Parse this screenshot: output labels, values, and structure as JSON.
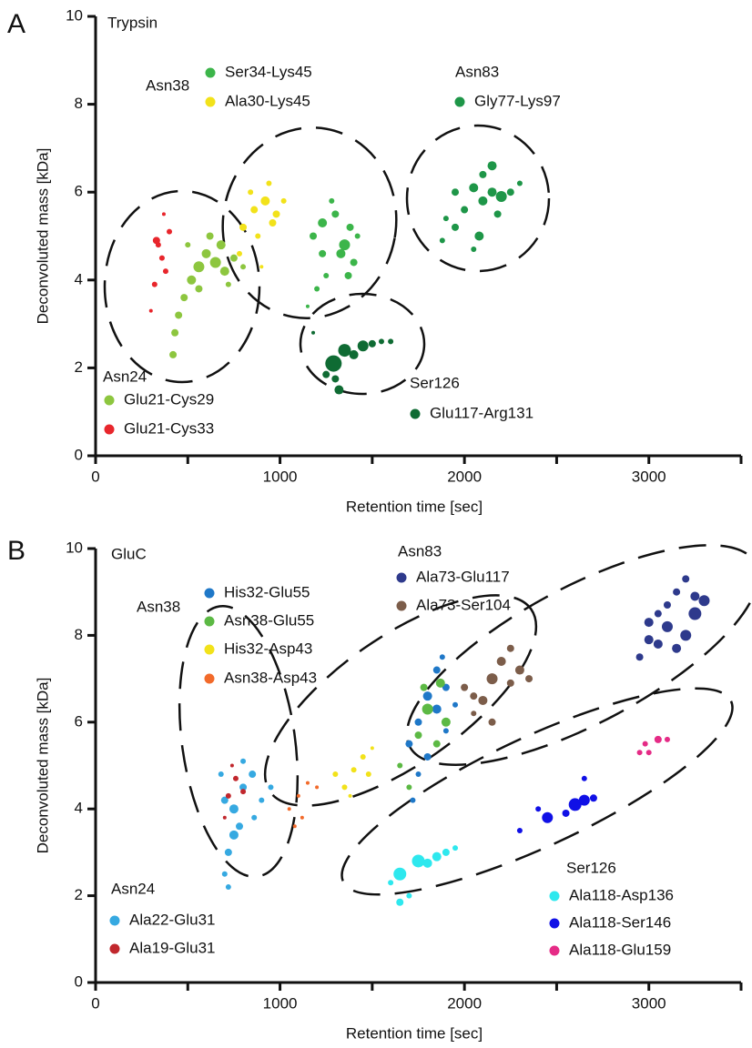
{
  "chart_data": [
    {
      "type": "scatter",
      "panel_label": "A",
      "title": "Trypsin",
      "xlabel": "Retention time [sec]",
      "ylabel": "Deconvoluted mass [kDa]",
      "xlim": [
        0,
        3500
      ],
      "ylim": [
        0,
        10
      ],
      "xticks": [
        0,
        1000,
        2000,
        3000
      ],
      "xminorticks": [
        500,
        1500,
        2500,
        3500
      ],
      "yticks": [
        0,
        2,
        4,
        6,
        8,
        10
      ],
      "annotations": [
        "Asn38",
        "Asn83",
        "Ser126",
        "Asn24"
      ],
      "series": [
        {
          "name": "Ser34-Lys45",
          "color": "#3cb54a",
          "x": [
            1180,
            1230,
            1300,
            1350,
            1330,
            1380,
            1400,
            1250,
            1200,
            1150,
            1420,
            1280,
            1230,
            1370
          ],
          "y": [
            5.0,
            5.3,
            5.5,
            4.8,
            4.6,
            5.2,
            4.4,
            4.1,
            3.8,
            3.4,
            5.0,
            5.8,
            4.6,
            4.1
          ],
          "sizes": [
            4,
            5,
            4,
            6,
            5,
            4,
            4,
            3,
            3,
            2,
            3,
            3,
            4,
            4
          ]
        },
        {
          "name": "Ala30-Lys45",
          "color": "#f2e21a",
          "x": [
            800,
            860,
            920,
            980,
            1020,
            880,
            940,
            780,
            900,
            840,
            960
          ],
          "y": [
            5.2,
            5.6,
            5.8,
            5.5,
            5.8,
            5.0,
            6.2,
            4.6,
            4.3,
            6.0,
            5.3
          ],
          "sizes": [
            4,
            4,
            5,
            4,
            3,
            3,
            3,
            3,
            2,
            3,
            4
          ]
        },
        {
          "name": "Gly77-Lys97",
          "color": "#1e9648",
          "x": [
            1950,
            2050,
            2150,
            2200,
            2100,
            2000,
            1950,
            2080,
            2150,
            2250,
            2180,
            1900,
            2050,
            2100,
            2300,
            1880
          ],
          "y": [
            6.0,
            6.1,
            6.0,
            5.9,
            5.8,
            5.6,
            5.2,
            5.0,
            6.6,
            6.0,
            5.5,
            5.4,
            4.7,
            6.4,
            6.2,
            4.9
          ],
          "sizes": [
            4,
            5,
            5,
            6,
            5,
            4,
            4,
            5,
            5,
            4,
            4,
            3,
            3,
            4,
            3,
            3
          ]
        },
        {
          "name": "Glu117-Arg131",
          "color": "#0f6b33",
          "x": [
            1290,
            1350,
            1450,
            1400,
            1500,
            1550,
            1320,
            1250,
            1300,
            1600,
            1180
          ],
          "y": [
            2.1,
            2.4,
            2.5,
            2.3,
            2.55,
            2.6,
            1.5,
            1.85,
            1.75,
            2.6,
            2.8
          ],
          "sizes": [
            9,
            7,
            6,
            5,
            4,
            3,
            5,
            4,
            4,
            3,
            2
          ]
        },
        {
          "name": "Glu21-Cys29",
          "color": "#8dc63f",
          "x": [
            560,
            600,
            650,
            700,
            520,
            480,
            450,
            430,
            420,
            680,
            750,
            620,
            560,
            720,
            500,
            800
          ],
          "y": [
            4.3,
            4.6,
            4.4,
            4.2,
            4.0,
            3.6,
            3.2,
            2.8,
            2.3,
            4.8,
            4.5,
            5.0,
            3.8,
            3.9,
            4.8,
            4.3
          ],
          "sizes": [
            6,
            5,
            6,
            5,
            5,
            4,
            4,
            4,
            4,
            5,
            4,
            4,
            4,
            3,
            3,
            3
          ]
        },
        {
          "name": "Glu21-Cys33",
          "color": "#e8262c",
          "x": [
            330,
            360,
            380,
            320,
            300,
            400,
            370,
            340
          ],
          "y": [
            4.9,
            4.5,
            4.2,
            3.9,
            3.3,
            5.1,
            5.5,
            4.8
          ],
          "sizes": [
            4,
            3,
            3,
            3,
            2,
            3,
            2,
            3
          ]
        }
      ]
    },
    {
      "type": "scatter",
      "panel_label": "B",
      "title": "GluC",
      "xlabel": "Retention time [sec]",
      "ylabel": "Deconvoluted mass [kDa]",
      "xlim": [
        0,
        3500
      ],
      "ylim": [
        0,
        10
      ],
      "xticks": [
        0,
        1000,
        2000,
        3000
      ],
      "xminorticks": [
        500,
        1500,
        2500,
        3500
      ],
      "yticks": [
        0,
        2,
        4,
        6,
        8,
        10
      ],
      "annotations": [
        "Asn38",
        "Asn83",
        "Asn24",
        "Ser126"
      ],
      "series": [
        {
          "name": "His32-Glu55",
          "color": "#1f78c8",
          "x": [
            1800,
            1850,
            1900,
            1750,
            1700,
            1850,
            1800,
            1750,
            1950,
            1720,
            1880,
            1900
          ],
          "y": [
            6.6,
            6.3,
            6.8,
            6.0,
            5.5,
            7.2,
            5.2,
            4.8,
            6.4,
            4.2,
            7.5,
            5.8
          ],
          "sizes": [
            5,
            5,
            4,
            4,
            4,
            4,
            4,
            3,
            3,
            3,
            3,
            3
          ]
        },
        {
          "name": "Asn38-Glu55",
          "color": "#5cb944",
          "x": [
            1800,
            1870,
            1900,
            1750,
            1650,
            1700,
            1850,
            1780
          ],
          "y": [
            6.3,
            6.9,
            6.0,
            5.7,
            5.0,
            4.5,
            5.5,
            6.8
          ],
          "sizes": [
            6,
            5,
            5,
            4,
            3,
            3,
            4,
            4
          ]
        },
        {
          "name": "His32-Asp43",
          "color": "#f2e21a",
          "x": [
            1300,
            1350,
            1400,
            1450,
            1480,
            1380,
            1500
          ],
          "y": [
            4.8,
            4.5,
            4.9,
            5.2,
            4.8,
            4.3,
            5.4
          ],
          "sizes": [
            3,
            3,
            3,
            3,
            3,
            2,
            2
          ]
        },
        {
          "name": "Asn38-Asp43",
          "color": "#f26a2a",
          "x": [
            1050,
            1100,
            1150,
            1200,
            1080,
            1120
          ],
          "y": [
            4.0,
            4.3,
            4.6,
            4.5,
            3.6,
            3.8
          ],
          "sizes": [
            2,
            2,
            2,
            2,
            2,
            2
          ]
        },
        {
          "name": "Ala73-Glu117",
          "color": "#2e3a8c",
          "x": [
            3100,
            3250,
            3300,
            3200,
            3050,
            3150,
            3000,
            3200,
            3250,
            3100,
            3000,
            2950,
            3150,
            3050
          ],
          "y": [
            8.2,
            8.5,
            8.8,
            8.0,
            7.8,
            7.7,
            8.3,
            9.3,
            8.9,
            8.7,
            7.9,
            7.5,
            9.0,
            8.5
          ],
          "sizes": [
            6,
            7,
            6,
            6,
            5,
            5,
            5,
            4,
            5,
            4,
            5,
            4,
            4,
            4
          ]
        },
        {
          "name": "Ala73-Ser104",
          "color": "#7c5d4a",
          "x": [
            2150,
            2200,
            2300,
            2100,
            2250,
            2050,
            2350,
            2000,
            2150,
            2250,
            2050
          ],
          "y": [
            7.0,
            7.4,
            7.2,
            6.5,
            6.9,
            6.6,
            7.0,
            6.8,
            6.0,
            7.7,
            6.2
          ],
          "sizes": [
            6,
            5,
            5,
            5,
            4,
            4,
            4,
            4,
            4,
            4,
            3
          ]
        },
        {
          "name": "Ala22-Glu31",
          "color": "#36a9e1",
          "x": [
            750,
            800,
            700,
            780,
            850,
            720,
            750,
            900,
            700,
            800,
            950,
            680,
            720,
            860
          ],
          "y": [
            4.0,
            4.5,
            4.2,
            3.6,
            4.8,
            3.0,
            3.4,
            4.2,
            2.5,
            5.1,
            4.5,
            4.8,
            2.2,
            3.8
          ],
          "sizes": [
            5,
            4,
            4,
            4,
            4,
            4,
            5,
            3,
            3,
            3,
            3,
            3,
            3,
            3
          ]
        },
        {
          "name": "Ala19-Glu31",
          "color": "#c1272d",
          "x": [
            720,
            760,
            800,
            740,
            700
          ],
          "y": [
            4.3,
            4.7,
            4.4,
            5.0,
            3.8
          ],
          "sizes": [
            3,
            3,
            3,
            2,
            2
          ]
        },
        {
          "name": "Ala118-Asp136",
          "color": "#2ee8ee",
          "x": [
            1650,
            1750,
            1850,
            1800,
            1900,
            1950,
            1600,
            1650,
            1700
          ],
          "y": [
            2.5,
            2.8,
            2.9,
            2.75,
            3.0,
            3.1,
            2.3,
            1.85,
            2.0
          ],
          "sizes": [
            7,
            7,
            5,
            5,
            4,
            3,
            3,
            4,
            3
          ]
        },
        {
          "name": "Ala118-Ser146",
          "color": "#1010e6",
          "x": [
            2450,
            2600,
            2650,
            2700,
            2550,
            2300,
            2650,
            2400
          ],
          "y": [
            3.8,
            4.1,
            4.2,
            4.25,
            3.9,
            3.5,
            4.7,
            4.0
          ],
          "sizes": [
            6,
            7,
            6,
            4,
            4,
            3,
            3,
            3
          ]
        },
        {
          "name": "Ala118-Glu159",
          "color": "#e52b86",
          "x": [
            2950,
            3000,
            2980,
            3050,
            3100
          ],
          "y": [
            5.3,
            5.3,
            5.5,
            5.6,
            5.6
          ],
          "sizes": [
            3,
            3,
            3,
            4,
            3
          ]
        }
      ]
    }
  ]
}
